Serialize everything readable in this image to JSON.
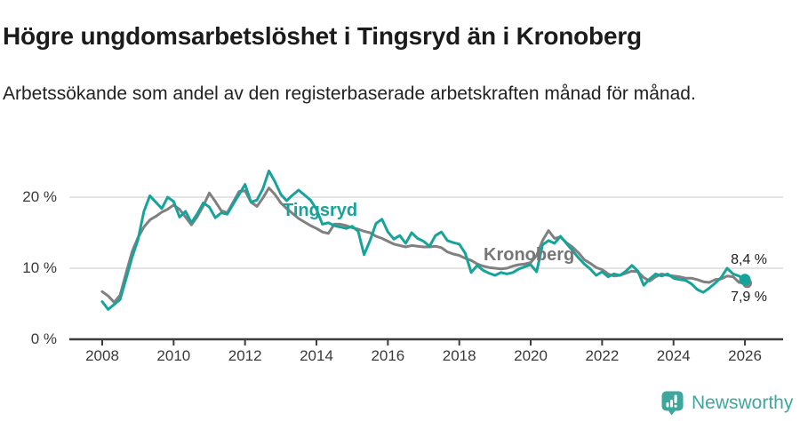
{
  "header": {
    "title": "Högre ungdomsarbetslöshet i Tingsryd än i Kronoberg",
    "subtitle": "Arbetssökande som andel av den registerbaserade arbetskraften månad för månad."
  },
  "chart_data": {
    "type": "line",
    "unit": "%",
    "x_start_year": 2008,
    "x_step_months": 2,
    "x_end_year": 2026,
    "x_ticks": [
      2008,
      2010,
      2012,
      2014,
      2016,
      2018,
      2020,
      2022,
      2024,
      2026
    ],
    "y_ticks": [
      {
        "value": 0,
        "label": "0 %"
      },
      {
        "value": 10,
        "label": "10 %"
      },
      {
        "value": 20,
        "label": "20 %"
      }
    ],
    "ylim": [
      0,
      25
    ],
    "grid": "horizontal",
    "legend_position": "inline-labels",
    "colors": {
      "tingsryd": "#16a39a",
      "kronoberg": "#808080",
      "grid": "#dcdcdc",
      "axis": "#3d3d3d"
    },
    "series": [
      {
        "name": "Kronoberg",
        "color": "#808080",
        "end_value": 7.9,
        "end_label": "7,9 %",
        "values": [
          6.7,
          6.1,
          5.2,
          6.2,
          9.3,
          12.3,
          14.3,
          15.8,
          16.8,
          17.3,
          17.9,
          18.3,
          18.9,
          18.3,
          17.2,
          16.1,
          17.3,
          18.8,
          20.6,
          19.4,
          18.1,
          17.8,
          19.3,
          20.8,
          20.9,
          19.3,
          18.7,
          19.9,
          21.3,
          20.4,
          19.2,
          18.4,
          17.7,
          17.0,
          16.5,
          16.0,
          15.6,
          15.1,
          14.9,
          16.2,
          16.2,
          16.0,
          15.7,
          15.5,
          15.2,
          15.0,
          14.5,
          14.2,
          13.8,
          13.4,
          13.2,
          13.0,
          13.2,
          13.1,
          13.0,
          13.0,
          13.1,
          12.9,
          12.3,
          12.0,
          11.8,
          11.4,
          11.1,
          10.6,
          10.3,
          10.1,
          10.0,
          9.9,
          10.0,
          10.3,
          10.5,
          10.6,
          10.8,
          11.8,
          13.9,
          15.3,
          14.2,
          14.4,
          13.6,
          13.0,
          12.2,
          11.2,
          10.7,
          10.1,
          9.8,
          9.2,
          8.9,
          9.0,
          9.3,
          9.6,
          9.5,
          8.7,
          8.2,
          8.8,
          9.2,
          9.0,
          8.9,
          8.8,
          8.6,
          8.6,
          8.4,
          8.1,
          8.0,
          8.4,
          8.5,
          8.9,
          8.8,
          8.0,
          7.9
        ]
      },
      {
        "name": "Tingsryd",
        "color": "#16a39a",
        "end_value": 8.4,
        "end_label": "8,4 %",
        "values": [
          5.3,
          4.2,
          4.9,
          5.6,
          8.5,
          11.5,
          14.0,
          18.0,
          20.2,
          19.3,
          18.4,
          20.0,
          19.4,
          17.2,
          18.0,
          16.4,
          17.7,
          19.2,
          18.6,
          17.1,
          17.8,
          17.6,
          19.0,
          20.4,
          21.8,
          19.3,
          19.6,
          21.2,
          23.7,
          22.2,
          20.4,
          19.5,
          20.3,
          21.0,
          20.3,
          19.6,
          18.3,
          16.2,
          16.4,
          16.0,
          15.8,
          15.6,
          15.9,
          15.2,
          11.9,
          13.9,
          16.3,
          16.9,
          15.1,
          14.1,
          14.6,
          13.5,
          15.0,
          14.2,
          13.8,
          13.1,
          14.6,
          15.1,
          13.9,
          13.6,
          13.4,
          12.1,
          9.4,
          10.4,
          9.7,
          9.3,
          9.0,
          9.4,
          9.2,
          9.4,
          9.9,
          10.2,
          10.5,
          9.5,
          13.3,
          13.9,
          13.5,
          14.5,
          13.5,
          12.5,
          11.5,
          10.6,
          9.9,
          9.0,
          9.5,
          8.8,
          9.2,
          9.0,
          9.6,
          10.4,
          9.6,
          7.6,
          8.5,
          9.2,
          8.9,
          9.2,
          8.6,
          8.4,
          8.3,
          7.8,
          7.0,
          6.6,
          7.2,
          7.9,
          8.7,
          10.0,
          9.2,
          8.9,
          8.4
        ]
      }
    ]
  },
  "footer": {
    "brand": "Newsworthy",
    "brand_color": "#3ea79d"
  }
}
